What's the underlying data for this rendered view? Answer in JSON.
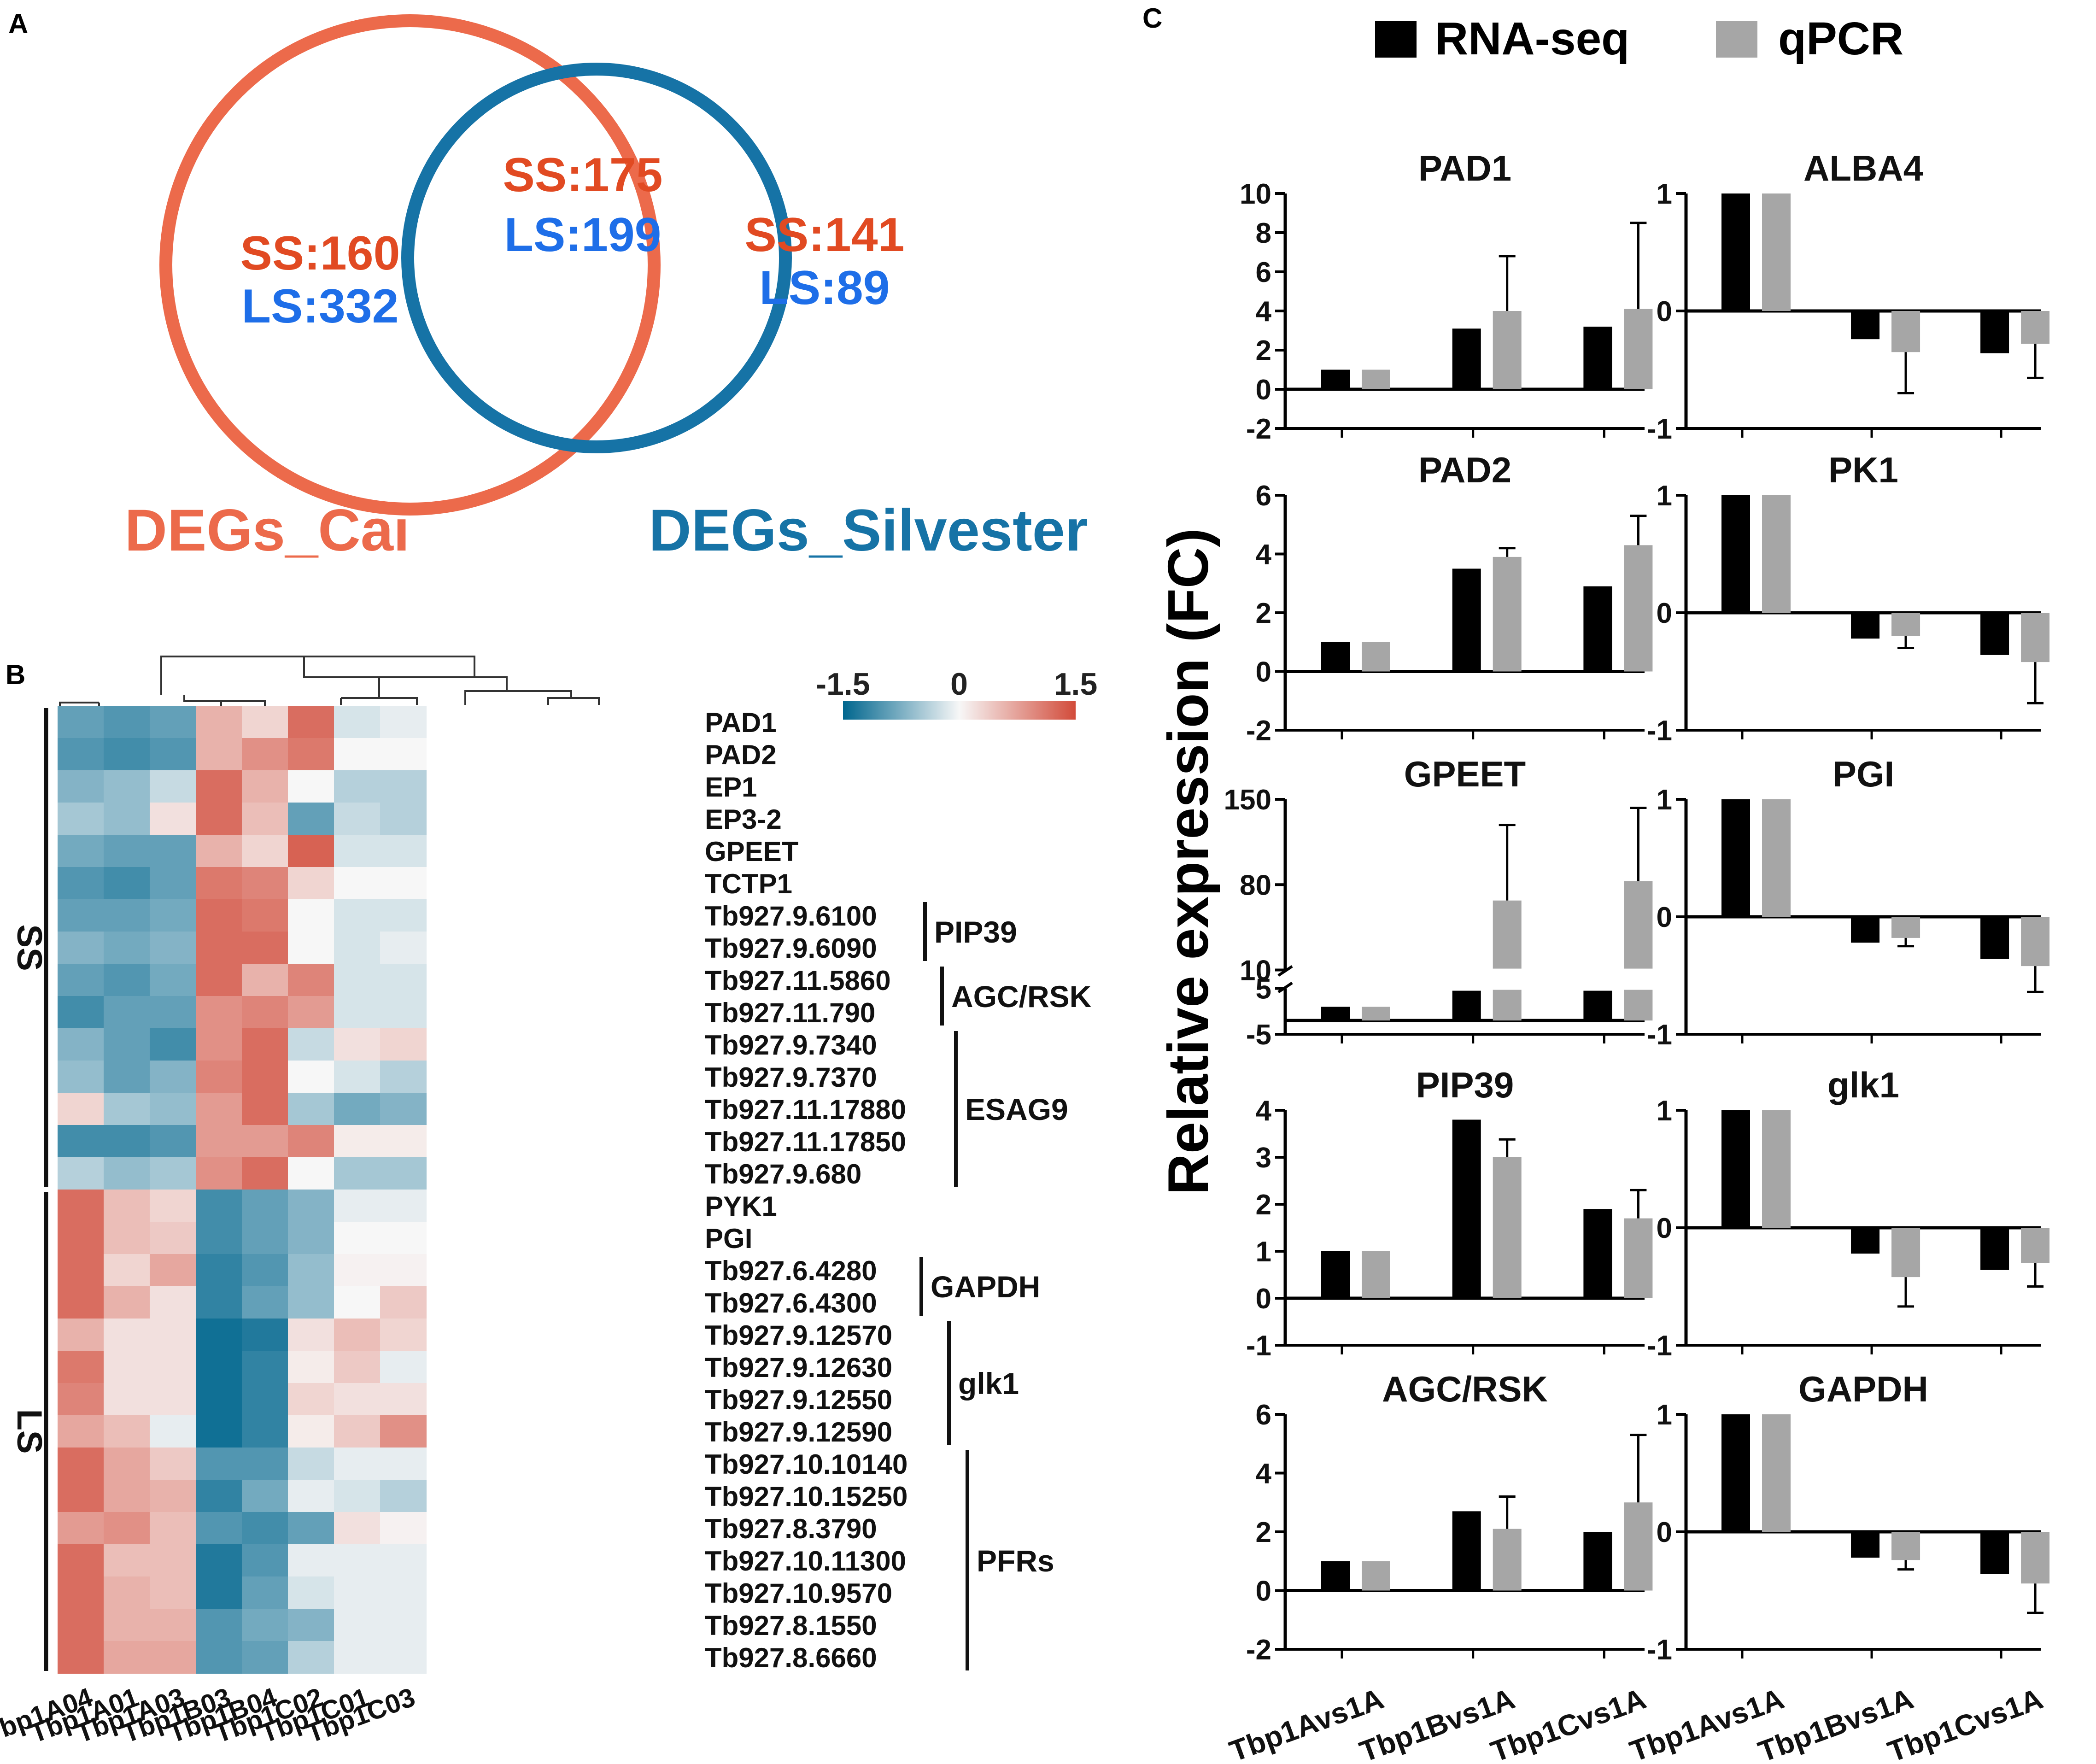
{
  "panels": {
    "a": "A",
    "b": "B",
    "c": "C"
  },
  "colors": {
    "cai": "#ec6a4b",
    "silvester": "#1673a6",
    "ss": "#e14a22",
    "ls": "#1e6ee8",
    "rnaseq": "#000000",
    "qpcr": "#a6a6a6",
    "heat_low": "#00668e",
    "heat_mid": "#f7f7f7",
    "heat_high": "#d24b3a"
  },
  "chart_data": [
    {
      "type": "venn",
      "sets": [
        {
          "name": "DEGs_Cai",
          "only": {
            "ss": "SS:160",
            "ls": "LS:332"
          }
        },
        {
          "name": "DEGs_Silvester",
          "only": {
            "ss": "SS:141",
            "ls": "LS:89"
          }
        }
      ],
      "overlap": {
        "ss": "SS:175",
        "ls": "LS:199"
      }
    },
    {
      "type": "heatmap",
      "columns": [
        "Tbp1A04",
        "Tbp1A01",
        "Tbp1A03",
        "Tbp1B03",
        "Tbp1B04",
        "Tbp1C02",
        "Tbp1C01",
        "Tbp1C03"
      ],
      "rows": [
        "PAD1",
        "PAD2",
        "EP1",
        "EP3-2",
        "GPEET",
        "TCTP1",
        "Tb927.9.6100",
        "Tb927.9.6090",
        "Tb927.11.5860",
        "Tb927.11.790",
        "Tb927.9.7340",
        "Tb927.9.7370",
        "Tb927.11.17880",
        "Tb927.11.17850",
        "Tb927.9.680",
        "PYK1",
        "PGI",
        "Tb927.6.4280",
        "Tb927.6.4300",
        "Tb927.9.12570",
        "Tb927.9.12630",
        "Tb927.9.12550",
        "Tb927.9.12590",
        "Tb927.10.10140",
        "Tb927.10.15250",
        "Tb927.8.3790",
        "Tb927.10.11300",
        "Tb927.10.9570",
        "Tb927.8.1550",
        "Tb927.8.6660"
      ],
      "values": [
        [
          -0.9,
          -1.0,
          -0.9,
          0.6,
          0.3,
          1.2,
          -0.2,
          -0.1
        ],
        [
          -1.0,
          -1.1,
          -1.0,
          0.6,
          0.9,
          1.1,
          0.0,
          0.0
        ],
        [
          -0.7,
          -0.6,
          -0.3,
          1.2,
          0.6,
          0.0,
          -0.4,
          -0.4
        ],
        [
          -0.5,
          -0.6,
          0.2,
          1.2,
          0.5,
          -0.9,
          -0.3,
          -0.4
        ],
        [
          -0.8,
          -0.9,
          -0.9,
          0.6,
          0.3,
          1.3,
          -0.2,
          -0.2
        ],
        [
          -1.0,
          -1.1,
          -0.9,
          1.1,
          1.0,
          0.3,
          0.0,
          0.0
        ],
        [
          -0.9,
          -0.9,
          -0.8,
          1.2,
          1.1,
          0.0,
          -0.2,
          -0.2
        ],
        [
          -0.7,
          -0.8,
          -0.7,
          1.2,
          1.2,
          0.0,
          -0.2,
          -0.1
        ],
        [
          -0.9,
          -1.0,
          -0.8,
          1.2,
          0.6,
          1.0,
          -0.2,
          -0.2
        ],
        [
          -1.1,
          -0.9,
          -0.9,
          0.9,
          1.0,
          0.8,
          -0.2,
          -0.2
        ],
        [
          -0.7,
          -0.9,
          -1.1,
          0.9,
          1.2,
          -0.3,
          0.2,
          0.3
        ],
        [
          -0.6,
          -0.9,
          -0.7,
          1.0,
          1.2,
          0.0,
          -0.2,
          -0.4
        ],
        [
          0.3,
          -0.5,
          -0.6,
          0.8,
          1.2,
          -0.5,
          -0.8,
          -0.7
        ],
        [
          -1.1,
          -1.1,
          -1.0,
          0.8,
          0.8,
          1.0,
          0.1,
          0.1
        ],
        [
          -0.4,
          -0.6,
          -0.5,
          0.9,
          1.2,
          0.0,
          -0.5,
          -0.5
        ],
        [
          1.2,
          0.5,
          0.3,
          -1.1,
          -0.9,
          -0.7,
          -0.1,
          -0.1
        ],
        [
          1.2,
          0.5,
          0.4,
          -1.1,
          -0.9,
          -0.7,
          0.0,
          0.0
        ],
        [
          1.2,
          0.3,
          0.7,
          -1.2,
          -1.0,
          -0.6,
          0.05,
          0.05
        ],
        [
          1.2,
          0.6,
          0.2,
          -1.2,
          -0.9,
          -0.6,
          0.0,
          0.4
        ],
        [
          0.6,
          0.2,
          0.2,
          -1.4,
          -1.3,
          0.2,
          0.5,
          0.3
        ],
        [
          1.1,
          0.2,
          0.2,
          -1.4,
          -1.2,
          0.1,
          0.4,
          -0.1
        ],
        [
          1.0,
          0.2,
          0.2,
          -1.4,
          -1.2,
          0.3,
          0.2,
          0.2
        ],
        [
          0.7,
          0.5,
          -0.1,
          -1.4,
          -1.2,
          0.1,
          0.4,
          0.9
        ],
        [
          1.2,
          0.7,
          0.4,
          -1.0,
          -1.0,
          -0.3,
          -0.1,
          -0.1
        ],
        [
          1.2,
          0.7,
          0.6,
          -1.2,
          -0.8,
          -0.1,
          -0.2,
          -0.4
        ],
        [
          0.8,
          0.9,
          0.5,
          -1.0,
          -1.1,
          -0.9,
          0.2,
          0.05
        ],
        [
          1.2,
          0.5,
          0.5,
          -1.3,
          -1.0,
          -0.1,
          -0.1,
          -0.1
        ],
        [
          1.2,
          0.6,
          0.5,
          -1.3,
          -0.9,
          -0.2,
          -0.1,
          -0.1
        ],
        [
          1.2,
          0.6,
          0.6,
          -1.0,
          -0.8,
          -0.7,
          -0.1,
          -0.1
        ],
        [
          1.2,
          0.7,
          0.7,
          -1.0,
          -0.9,
          -0.4,
          -0.1,
          -0.1
        ]
      ],
      "row_groups": [
        {
          "label": "SS",
          "from": 0,
          "to": 14
        },
        {
          "label": "LS",
          "from": 15,
          "to": 29
        }
      ],
      "brackets": [
        {
          "label": "PIP39",
          "from": 6,
          "to": 7
        },
        {
          "label": "AGC/RSK",
          "from": 8,
          "to": 9
        },
        {
          "label": "ESAG9",
          "from": 10,
          "to": 14
        },
        {
          "label": "GAPDH",
          "from": 17,
          "to": 18
        },
        {
          "label": "glk1",
          "from": 19,
          "to": 22
        },
        {
          "label": "PFRs",
          "from": 23,
          "to": 29
        }
      ],
      "colorbar": {
        "min": -1.5,
        "max": 1.5,
        "labels": [
          "-1.5",
          "0",
          "1.5"
        ]
      }
    },
    {
      "type": "bar",
      "ylabel": "Relative expression (FC)",
      "legend": [
        "RNA-seq",
        "qPCR"
      ],
      "categories": [
        "Tbp1Avs1A",
        "Tbp1Bvs1A",
        "Tbp1Cvs1A"
      ],
      "subplots": [
        {
          "title": "PAD1",
          "ylim": [
            -2,
            10
          ],
          "ticks": [
            -2,
            0,
            2,
            4,
            6,
            8,
            10
          ],
          "tick_labels": [
            "-2",
            "0",
            "2",
            "4",
            "6",
            "8",
            "10"
          ],
          "series": [
            {
              "name": "RNA-seq",
              "values": [
                1,
                3.1,
                3.2
              ]
            },
            {
              "name": "qPCR",
              "values": [
                1,
                4.0,
                4.1
              ],
              "errors": [
                0,
                2.8,
                4.4
              ]
            }
          ]
        },
        {
          "title": "ALBA4",
          "ylim": [
            -1,
            1
          ],
          "ticks": [
            -1,
            0,
            1
          ],
          "tick_labels": [
            "-1",
            "0",
            "1"
          ],
          "series": [
            {
              "name": "RNA-seq",
              "values": [
                1,
                -0.24,
                -0.36
              ]
            },
            {
              "name": "qPCR",
              "values": [
                1,
                -0.35,
                -0.28
              ],
              "errors": [
                0,
                0.35,
                0.29
              ]
            }
          ]
        },
        {
          "title": "PAD2",
          "ylim": [
            -2,
            6
          ],
          "ticks": [
            -2,
            0,
            2,
            4,
            6
          ],
          "tick_labels": [
            "-2",
            "0",
            "2",
            "4",
            "6"
          ],
          "series": [
            {
              "name": "RNA-seq",
              "values": [
                1,
                3.5,
                2.9
              ]
            },
            {
              "name": "qPCR",
              "values": [
                1,
                3.9,
                4.3
              ],
              "errors": [
                0,
                0.3,
                1.0
              ]
            }
          ]
        },
        {
          "title": "PK1",
          "ylim": [
            -1,
            1
          ],
          "ticks": [
            -1,
            0,
            1
          ],
          "tick_labels": [
            "-1",
            "0",
            "1"
          ],
          "series": [
            {
              "name": "RNA-seq",
              "values": [
                1,
                -0.22,
                -0.36
              ]
            },
            {
              "name": "qPCR",
              "values": [
                1,
                -0.2,
                -0.42
              ],
              "errors": [
                0,
                0.1,
                0.35
              ]
            }
          ]
        },
        {
          "title": "GPEET",
          "broken": true,
          "ylim": [
            -5,
            150
          ],
          "ticks": [
            -5,
            5,
            10,
            80,
            150
          ],
          "tick_labels": [
            "-5",
            "5",
            "10",
            "80",
            "150"
          ],
          "series": [
            {
              "name": "RNA-seq",
              "values": [
                1,
                4.5,
                4.5
              ]
            },
            {
              "name": "qPCR",
              "values": [
                1,
                67,
                83
              ],
              "errors": [
                0,
                62,
                60
              ]
            }
          ]
        },
        {
          "title": "PGI",
          "ylim": [
            -1,
            1
          ],
          "ticks": [
            -1,
            0,
            1
          ],
          "tick_labels": [
            "-1",
            "0",
            "1"
          ],
          "series": [
            {
              "name": "RNA-seq",
              "values": [
                1,
                -0.22,
                -0.36
              ]
            },
            {
              "name": "qPCR",
              "values": [
                1,
                -0.18,
                -0.42
              ],
              "errors": [
                0,
                0.07,
                0.22
              ]
            }
          ]
        },
        {
          "title": "PIP39",
          "ylim": [
            -1,
            4
          ],
          "ticks": [
            -1,
            0,
            1,
            2,
            3,
            4
          ],
          "tick_labels": [
            "-1",
            "0",
            "1",
            "2",
            "3",
            "4"
          ],
          "series": [
            {
              "name": "RNA-seq",
              "values": [
                1,
                3.8,
                1.9
              ]
            },
            {
              "name": "qPCR",
              "values": [
                1,
                3.0,
                1.7
              ],
              "errors": [
                0,
                0.38,
                0.6
              ]
            }
          ]
        },
        {
          "title": "glk1",
          "ylim": [
            -1,
            1
          ],
          "ticks": [
            -1,
            0,
            1
          ],
          "tick_labels": [
            "-1",
            "0",
            "1"
          ],
          "series": [
            {
              "name": "RNA-seq",
              "values": [
                1,
                -0.22,
                -0.36
              ]
            },
            {
              "name": "qPCR",
              "values": [
                1,
                -0.42,
                -0.3
              ],
              "errors": [
                0,
                0.25,
                0.2
              ]
            }
          ]
        },
        {
          "title": "AGC/RSK",
          "ylim": [
            -2,
            6
          ],
          "ticks": [
            -2,
            0,
            2,
            4,
            6
          ],
          "tick_labels": [
            "-2",
            "0",
            "2",
            "4",
            "6"
          ],
          "series": [
            {
              "name": "RNA-seq",
              "values": [
                1,
                2.7,
                2.0
              ]
            },
            {
              "name": "qPCR",
              "values": [
                1,
                2.1,
                3.0
              ],
              "errors": [
                0,
                1.1,
                2.3
              ]
            }
          ]
        },
        {
          "title": "GAPDH",
          "ylim": [
            -1,
            1
          ],
          "ticks": [
            -1,
            0,
            1
          ],
          "tick_labels": [
            "-1",
            "0",
            "1"
          ],
          "series": [
            {
              "name": "RNA-seq",
              "values": [
                1,
                -0.22,
                -0.36
              ]
            },
            {
              "name": "qPCR",
              "values": [
                1,
                -0.24,
                -0.44
              ],
              "errors": [
                0,
                0.08,
                0.25
              ]
            }
          ]
        }
      ]
    }
  ]
}
